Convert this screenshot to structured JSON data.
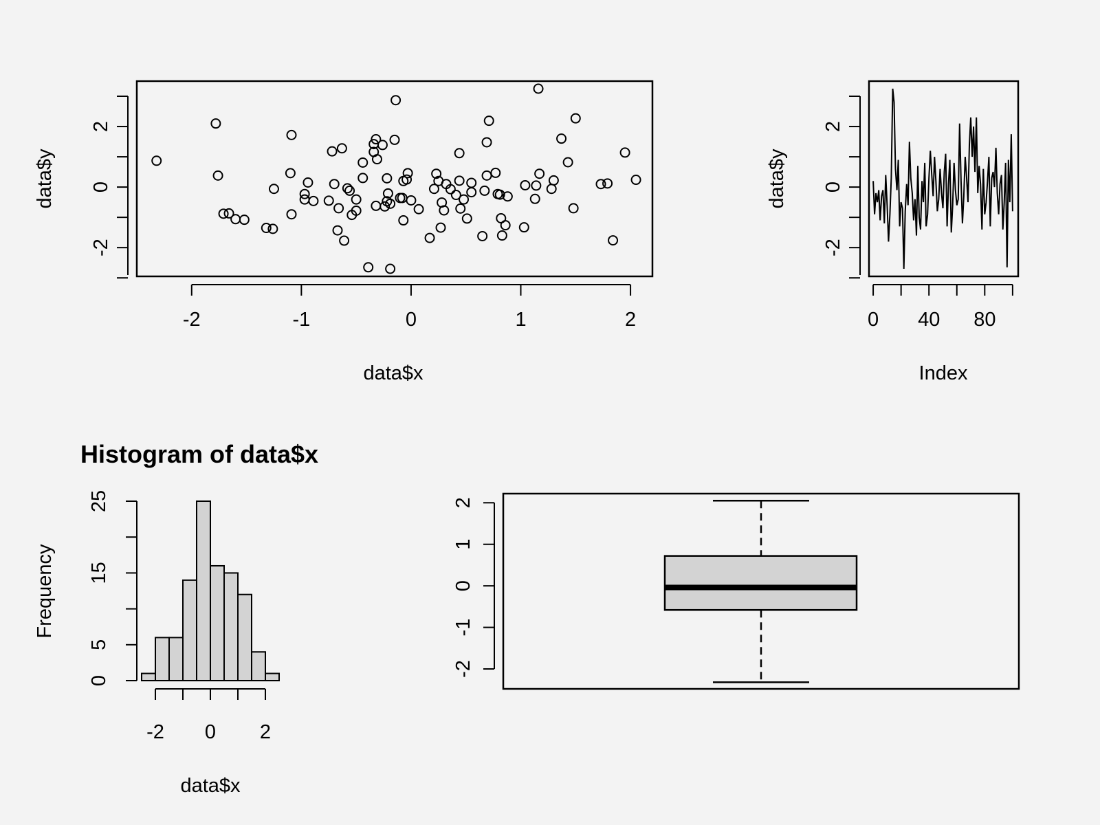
{
  "background": "#f3f3f3",
  "colors": {
    "ink": "#000000",
    "fill": "#d3d3d3"
  },
  "chart_data": [
    {
      "type": "scatter",
      "xlabel": "data$x",
      "ylabel": "data$y",
      "xticks": [
        -2,
        -1,
        0,
        1,
        2
      ],
      "yticks": [
        -2,
        0,
        2
      ],
      "xlim": [
        -2.5,
        2.2
      ],
      "ylim": [
        -2.95,
        3.5
      ],
      "points": [
        [
          -2.32,
          0.87
        ],
        [
          -1.78,
          2.1
        ],
        [
          -1.76,
          0.38
        ],
        [
          -1.71,
          -0.88
        ],
        [
          -1.66,
          -0.87
        ],
        [
          -1.6,
          -1.06
        ],
        [
          -1.52,
          -1.08
        ],
        [
          -1.32,
          -1.35
        ],
        [
          -1.26,
          -1.38
        ],
        [
          -1.25,
          -0.06
        ],
        [
          -1.09,
          1.72
        ],
        [
          -1.1,
          0.46
        ],
        [
          -1.09,
          -0.9
        ],
        [
          -0.97,
          -0.23
        ],
        [
          -0.97,
          -0.41
        ],
        [
          -0.94,
          0.15
        ],
        [
          -0.89,
          -0.46
        ],
        [
          -0.75,
          -0.45
        ],
        [
          -0.72,
          1.18
        ],
        [
          -0.7,
          0.1
        ],
        [
          -0.66,
          -0.7
        ],
        [
          -0.67,
          -1.43
        ],
        [
          -0.63,
          1.28
        ],
        [
          -0.61,
          -1.77
        ],
        [
          -0.58,
          -0.04
        ],
        [
          -0.56,
          -0.12
        ],
        [
          -0.54,
          -0.92
        ],
        [
          -0.5,
          -0.78
        ],
        [
          -0.5,
          -0.41
        ],
        [
          -0.44,
          0.81
        ],
        [
          -0.44,
          0.3
        ],
        [
          -0.39,
          -2.65
        ],
        [
          -0.34,
          1.16
        ],
        [
          -0.34,
          1.42
        ],
        [
          -0.32,
          1.58
        ],
        [
          -0.31,
          0.92
        ],
        [
          -0.32,
          -0.62
        ],
        [
          -0.26,
          1.39
        ],
        [
          -0.24,
          -0.64
        ],
        [
          -0.22,
          -0.47
        ],
        [
          -0.22,
          0.29
        ],
        [
          -0.21,
          -0.21
        ],
        [
          -0.19,
          -0.55
        ],
        [
          -0.19,
          -2.7
        ],
        [
          -0.15,
          1.56
        ],
        [
          -0.14,
          2.87
        ],
        [
          -0.1,
          -0.36
        ],
        [
          -0.08,
          -0.36
        ],
        [
          -0.07,
          0.2
        ],
        [
          -0.07,
          -1.1
        ],
        [
          -0.04,
          0.25
        ],
        [
          -0.03,
          0.46
        ],
        [
          0.0,
          -0.44
        ],
        [
          0.07,
          -0.73
        ],
        [
          0.21,
          -0.06
        ],
        [
          0.17,
          -1.68
        ],
        [
          0.23,
          0.44
        ],
        [
          0.25,
          0.2
        ],
        [
          0.27,
          -1.34
        ],
        [
          0.28,
          -0.51
        ],
        [
          0.3,
          -0.77
        ],
        [
          0.32,
          0.1
        ],
        [
          0.36,
          -0.07
        ],
        [
          0.41,
          -0.26
        ],
        [
          0.44,
          1.12
        ],
        [
          0.44,
          0.21
        ],
        [
          0.45,
          -0.71
        ],
        [
          0.48,
          -0.41
        ],
        [
          0.51,
          -1.04
        ],
        [
          0.55,
          -0.17
        ],
        [
          0.55,
          0.14
        ],
        [
          0.65,
          -1.62
        ],
        [
          0.67,
          -0.12
        ],
        [
          0.69,
          1.48
        ],
        [
          0.69,
          0.38
        ],
        [
          0.71,
          2.19
        ],
        [
          0.77,
          0.47
        ],
        [
          0.79,
          -0.23
        ],
        [
          0.81,
          -0.25
        ],
        [
          0.82,
          -1.03
        ],
        [
          0.83,
          -1.6
        ],
        [
          0.86,
          -1.26
        ],
        [
          0.88,
          -0.31
        ],
        [
          1.03,
          -1.33
        ],
        [
          1.04,
          0.06
        ],
        [
          1.13,
          -0.39
        ],
        [
          1.14,
          0.05
        ],
        [
          1.16,
          3.25
        ],
        [
          1.17,
          0.44
        ],
        [
          1.28,
          -0.06
        ],
        [
          1.3,
          0.22
        ],
        [
          1.37,
          1.6
        ],
        [
          1.43,
          0.82
        ],
        [
          1.48,
          -0.7
        ],
        [
          1.5,
          2.27
        ],
        [
          1.73,
          0.1
        ],
        [
          1.79,
          0.12
        ],
        [
          1.84,
          -1.76
        ],
        [
          1.95,
          1.14
        ],
        [
          2.05,
          0.24
        ]
      ]
    },
    {
      "type": "line",
      "xlabel": "Index",
      "ylabel": "data$y",
      "xticks": [
        0,
        40,
        80
      ],
      "minor_xticks": [
        20,
        60,
        100
      ],
      "yticks": [
        -2,
        0,
        2
      ],
      "xlim": [
        -3,
        104
      ],
      "ylim": [
        -2.95,
        3.5
      ],
      "y": [
        0.2,
        -0.9,
        -0.2,
        -0.5,
        -0.1,
        -1.1,
        -0.3,
        -0.1,
        -1.2,
        0.4,
        -0.6,
        -1.8,
        -0.9,
        0.3,
        3.25,
        2.8,
        0.6,
        -0.1,
        0.9,
        -1.3,
        -0.5,
        -0.7,
        -2.7,
        -0.8,
        0.1,
        -0.6,
        1.5,
        0.3,
        -0.2,
        -1.1,
        -0.4,
        -1.6,
        0.7,
        -1.0,
        -1.4,
        0.2,
        -0.5,
        0.8,
        -1.3,
        -0.9,
        0.3,
        1.2,
        0.4,
        -0.3,
        1.0,
        0.2,
        -0.8,
        -0.4,
        0.6,
        -0.2,
        -0.7,
        0.5,
        1.1,
        -1.3,
        0.1,
        0.9,
        -1.5,
        -0.6,
        0.8,
        -0.1,
        -0.6,
        -0.4,
        2.1,
        0.2,
        -1.2,
        -0.3,
        1.0,
        0.3,
        -0.5,
        1.4,
        2.3,
        1.0,
        2.0,
        0.5,
        2.3,
        -0.2,
        0.7,
        0.1,
        -1.4,
        0.6,
        -0.9,
        -0.5,
        0.2,
        1.0,
        -1.3,
        0.3,
        0.5,
        0.0,
        1.3,
        -0.2,
        -0.9,
        0.1,
        0.4,
        -1.4,
        -0.5,
        0.8,
        -2.65,
        0.9,
        -0.5,
        1.75,
        -0.8
      ]
    },
    {
      "type": "bar",
      "title": "Histogram of data$x",
      "xlabel": "data$x",
      "ylabel": "Frequency",
      "xticks": [
        -2,
        0,
        2
      ],
      "minor_xticks": [
        -1,
        1
      ],
      "yticks": [
        0,
        5,
        15,
        25
      ],
      "minor_yticks": [
        10,
        20
      ],
      "ylim": [
        0,
        25
      ],
      "bins": [
        {
          "from": -2.5,
          "to": -2.0,
          "count": 1
        },
        {
          "from": -2.0,
          "to": -1.5,
          "count": 6
        },
        {
          "from": -1.5,
          "to": -1.0,
          "count": 6
        },
        {
          "from": -1.0,
          "to": -0.5,
          "count": 14
        },
        {
          "from": -0.5,
          "to": 0.0,
          "count": 25
        },
        {
          "from": 0.0,
          "to": 0.5,
          "count": 16
        },
        {
          "from": 0.5,
          "to": 1.0,
          "count": 15
        },
        {
          "from": 1.0,
          "to": 1.5,
          "count": 12
        },
        {
          "from": 1.5,
          "to": 2.0,
          "count": 4
        },
        {
          "from": 2.0,
          "to": 2.5,
          "count": 1
        }
      ]
    },
    {
      "type": "box",
      "yticks": [
        -2,
        -1,
        0,
        1,
        2
      ],
      "ylim": [
        -2.48,
        2.22
      ],
      "min": -2.32,
      "q1": -0.58,
      "median": -0.04,
      "q3": 0.72,
      "max": 2.05
    }
  ]
}
